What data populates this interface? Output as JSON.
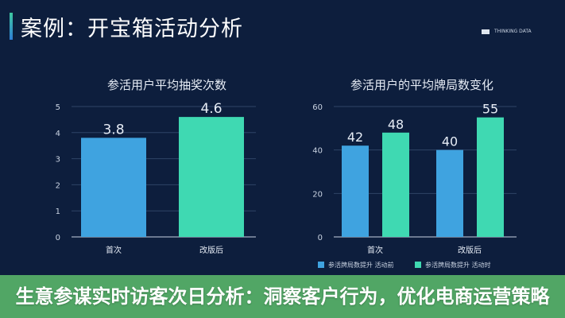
{
  "header": {
    "title": "案例：开宝箱活动分析",
    "brand": "THINKING DATA"
  },
  "banner": {
    "text": "生意参谋实时访客次日分析：洞察客户行为，优化电商运营策略"
  },
  "colors": {
    "before": "#3fa3e0",
    "after": "#3fd9b2",
    "background": "#0d1e3d"
  },
  "chart_data": [
    {
      "type": "bar",
      "title": "参活用户平均抽奖次数",
      "categories": [
        "首次",
        "改版后"
      ],
      "values": [
        3.8,
        4.6
      ],
      "bar_colors": [
        "#3fa3e0",
        "#3fd9b2"
      ],
      "yticks": [
        0,
        1,
        2,
        3,
        4,
        5
      ],
      "ylim": [
        0,
        5
      ],
      "grid": true
    },
    {
      "type": "bar",
      "title": "参活用户的平均牌局数变化",
      "categories": [
        "首次",
        "改版后"
      ],
      "series": [
        {
          "name": "参活牌局数提升 活动前",
          "values": [
            42,
            40
          ],
          "color": "#3fa3e0"
        },
        {
          "name": "参活牌局数提升 活动时",
          "values": [
            48,
            55
          ],
          "color": "#3fd9b2"
        }
      ],
      "yticks": [
        0,
        20,
        40,
        60
      ],
      "ylim": [
        0,
        60
      ],
      "grid": true,
      "legend": "bottom"
    }
  ]
}
